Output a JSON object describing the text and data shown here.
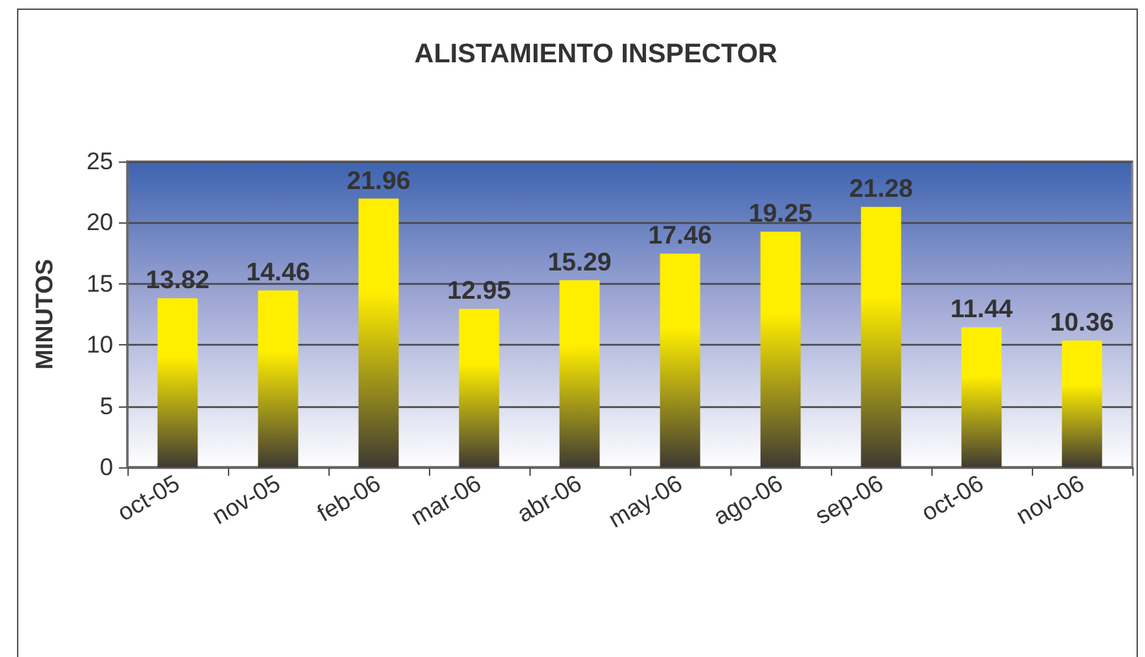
{
  "chart_data": {
    "type": "bar",
    "title": "ALISTAMIENTO INSPECTOR",
    "ylabel": "MINUTOS",
    "categories": [
      "oct-05",
      "nov-05",
      "feb-06",
      "mar-06",
      "abr-06",
      "may-06",
      "ago-06",
      "sep-06",
      "oct-06",
      "nov-06"
    ],
    "values": [
      13.82,
      14.46,
      21.96,
      12.95,
      15.29,
      17.46,
      19.25,
      21.28,
      11.44,
      10.36
    ],
    "color": "#ffee00",
    "ylim": [
      0,
      25
    ],
    "yticks": [
      0,
      5,
      10,
      15,
      20,
      25
    ],
    "grid": "y",
    "data_labels": true
  }
}
